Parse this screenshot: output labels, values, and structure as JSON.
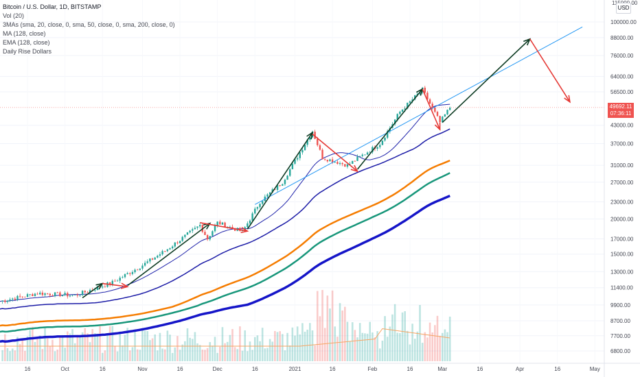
{
  "legend": {
    "title": "Bitcoin / U.S. Dollar, 1D, BITSTAMP",
    "vol": "Vol (20)",
    "mas": "3MAs (sma, 20, close, 0, sma, 50, close, 0, sma, 200, close, 0)",
    "ma": "MA (128, close)",
    "ema": "EMA (128, close)",
    "rise": "Daily Rise Dollars"
  },
  "currency_button": "USD",
  "top_price_partial": "115000.00",
  "current_price": {
    "value": "49692.11",
    "countdown": "07:36:11"
  },
  "colors": {
    "up": "#26a69a",
    "down": "#ef5350",
    "blue_ma": "#1e22aa",
    "navy_ma": "#1a1aa6",
    "orange_ma": "#f57c00",
    "teal_ma": "#17967a",
    "thick_blue": "#1515c8",
    "trend": "#2196f3",
    "green_arrow": "#0d3b22",
    "red_arrow": "#e53935",
    "vol_ma": "#f6a462"
  },
  "chart_data": {
    "type": "candlestick",
    "title": "Bitcoin / U.S. Dollar, 1D, BITSTAMP",
    "x_ticks": [
      "16",
      "Oct",
      "16",
      "Nov",
      "16",
      "Dec",
      "16",
      "2021",
      "16",
      "Feb",
      "16",
      "Mar",
      "16",
      "Apr",
      "16",
      "May"
    ],
    "y_ticks": [
      "100000.00",
      "88000.00",
      "76000.00",
      "64000.00",
      "56500.00",
      "43000.00",
      "37000.00",
      "31000.00",
      "27000.00",
      "23000.00",
      "20000.00",
      "17000.00",
      "15000.00",
      "13000.00",
      "11400.00",
      "9900.00",
      "8700.00",
      "7700.00",
      "6800.00"
    ],
    "y_scale": "log",
    "price_path": [
      [
        "2020-09-05",
        10200
      ],
      [
        "2020-09-20",
        10900
      ],
      [
        "2020-10-05",
        10700
      ],
      [
        "2020-10-20",
        11900
      ],
      [
        "2020-11-01",
        13700
      ],
      [
        "2020-11-10",
        15400
      ],
      [
        "2020-11-24",
        19000
      ],
      [
        "2020-11-27",
        17000
      ],
      [
        "2020-12-01",
        19400
      ],
      [
        "2020-12-11",
        18000
      ],
      [
        "2020-12-18",
        23000
      ],
      [
        "2020-12-27",
        27000
      ],
      [
        "2021-01-08",
        41000
      ],
      [
        "2021-01-12",
        33000
      ],
      [
        "2021-01-22",
        31000
      ],
      [
        "2021-02-04",
        37000
      ],
      [
        "2021-02-12",
        48000
      ],
      [
        "2021-02-21",
        57500
      ],
      [
        "2021-02-28",
        44000
      ],
      [
        "2021-03-04",
        49692
      ]
    ],
    "annotations": [
      {
        "type": "up-arrow",
        "from": [
          "2020-10-08",
          10500
        ],
        "to": [
          "2020-10-16",
          11800
        ]
      },
      {
        "type": "down-arrow",
        "from": [
          "2020-10-16",
          11800
        ],
        "to": [
          "2020-10-26",
          11500
        ]
      },
      {
        "type": "up-arrow",
        "from": [
          "2020-10-26",
          11600
        ],
        "to": [
          "2020-11-28",
          19300
        ]
      },
      {
        "type": "down-arrow",
        "from": [
          "2020-11-24",
          19400
        ],
        "to": [
          "2020-12-13",
          18100
        ]
      },
      {
        "type": "up-arrow",
        "from": [
          "2020-12-13",
          18400
        ],
        "to": [
          "2021-01-08",
          40500
        ]
      },
      {
        "type": "down-arrow",
        "from": [
          "2021-01-08",
          40000
        ],
        "to": [
          "2021-01-26",
          29500
        ]
      },
      {
        "type": "up-arrow",
        "from": [
          "2021-01-26",
          30000
        ],
        "to": [
          "2021-02-21",
          57800
        ]
      },
      {
        "type": "down-arrow",
        "from": [
          "2021-02-21",
          57800
        ],
        "to": [
          "2021-02-28",
          41500
        ]
      },
      {
        "type": "up-arrow",
        "from": [
          "2021-03-01",
          44000
        ],
        "to": [
          "2021-04-05",
          87000
        ]
      },
      {
        "type": "down-arrow",
        "from": [
          "2021-04-05",
          87000
        ],
        "to": [
          "2021-04-21",
          52000
        ]
      }
    ]
  }
}
